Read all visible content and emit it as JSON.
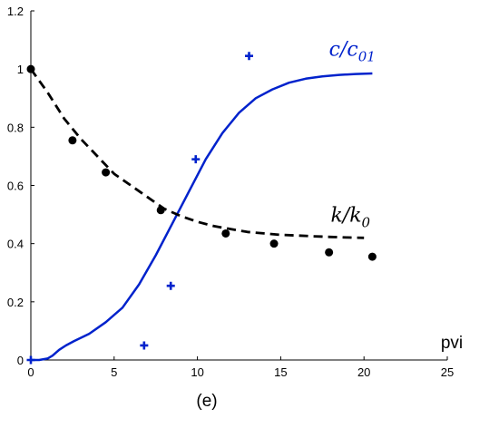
{
  "chart_data": {
    "type": "line",
    "caption": "(e)",
    "xlabel": "pvi",
    "ylabel": "",
    "xlim": [
      0,
      25
    ],
    "ylim": [
      0,
      1.2
    ],
    "xticks": [
      "0",
      "5",
      "10",
      "15",
      "20",
      "25"
    ],
    "yticks": [
      "0",
      "0.2",
      "0.4",
      "0.6",
      "0.8",
      "1",
      "1.2"
    ],
    "grid": false,
    "colors": {
      "blue": "#0022cc",
      "black": "#000000"
    },
    "series": [
      {
        "name": "",
        "style": "solid-line",
        "color": "#0022cc",
        "x": [
          0,
          0.5,
          1.0,
          1.3,
          1.7,
          2.1,
          2.6,
          3.5,
          4.5,
          5.5,
          6.5,
          7.5,
          8.5,
          9.5,
          10.5,
          11.5,
          12.5,
          13.5,
          14.5,
          15.5,
          16.5,
          17.5,
          18.5,
          19.5,
          20.5
        ],
        "y": [
          0,
          0,
          0.005,
          0.015,
          0.035,
          0.05,
          0.065,
          0.09,
          0.13,
          0.18,
          0.26,
          0.36,
          0.47,
          0.58,
          0.69,
          0.78,
          0.85,
          0.9,
          0.93,
          0.953,
          0.967,
          0.975,
          0.98,
          0.983,
          0.985
        ]
      },
      {
        "name": "",
        "style": "dashed-line",
        "color": "#000000",
        "x": [
          0,
          1,
          2,
          3,
          4,
          5,
          6,
          7,
          8,
          9,
          10,
          11,
          12,
          13,
          14,
          15,
          16,
          17,
          18,
          19,
          20
        ],
        "y": [
          1.0,
          0.92,
          0.83,
          0.76,
          0.7,
          0.64,
          0.6,
          0.56,
          0.52,
          0.495,
          0.475,
          0.46,
          0.45,
          0.44,
          0.435,
          0.43,
          0.428,
          0.425,
          0.423,
          0.421,
          0.42
        ]
      },
      {
        "name": "",
        "style": "dot-markers",
        "color": "#000000",
        "x": [
          0,
          2.5,
          4.5,
          7.8,
          11.7,
          14.6,
          17.9,
          20.5
        ],
        "y": [
          1.0,
          0.755,
          0.645,
          0.515,
          0.435,
          0.4,
          0.37,
          0.355
        ]
      },
      {
        "name": "",
        "style": "plus-markers",
        "color": "#0022cc",
        "x": [
          0,
          6.8,
          8.4,
          9.9,
          13.1
        ],
        "y": [
          0,
          0.05,
          0.255,
          0.69,
          1.045
        ]
      }
    ],
    "annotations": [
      {
        "base": "c/c",
        "sub": "01",
        "color": "#0022cc",
        "x": 17.9,
        "y": 1.045
      },
      {
        "base": "k/k",
        "sub": "0",
        "color": "#000000",
        "x": 18,
        "y": 0.475
      }
    ]
  }
}
